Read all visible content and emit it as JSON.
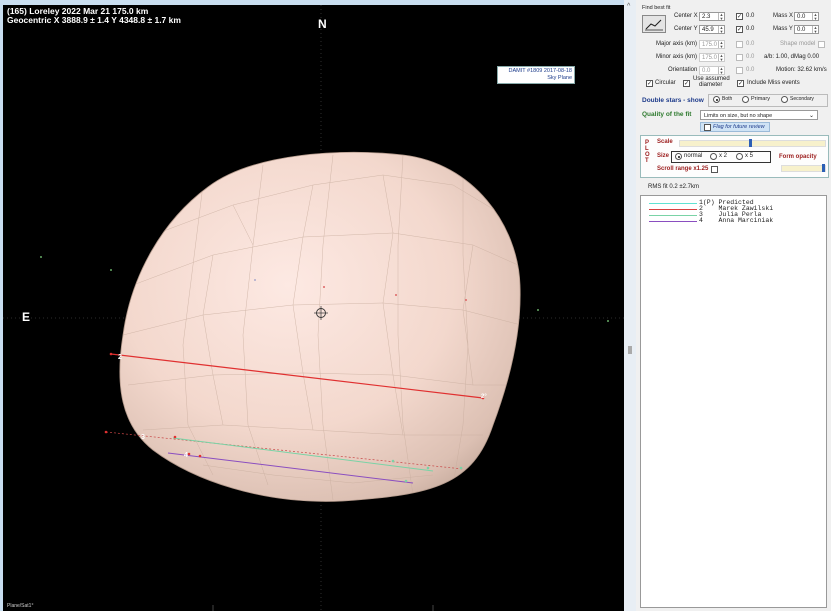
{
  "header": {
    "line1": "(165) Loreley  2022 Mar 21   175.0 km",
    "line2": "Geocentric  X  3888.9 ± 1.4  Y 4348.8 ± 1.7 km"
  },
  "compass": {
    "north": "N",
    "east": "E"
  },
  "damit_label": {
    "line1": "DAMIT #1809 2017-08-18",
    "line2": "Sky Plane"
  },
  "footer_left": "Plane/Sat1°",
  "chords": [
    {
      "index": "1",
      "label": ""
    },
    {
      "index": "2",
      "label": "2"
    },
    {
      "index": "3",
      "label": "3"
    },
    {
      "index": "4",
      "label": "4"
    }
  ],
  "chord_end_labels": {
    "c2": "2°"
  },
  "splitter": {
    "collapse_glyph": "^"
  },
  "panel": {
    "find_best_fit": "Find best fit",
    "center_x_label": "Center X",
    "center_x_value": "2.3",
    "center_y_label": "Center Y",
    "center_y_value": "45.9",
    "chk_x_value": "0.0",
    "chk_y_value": "0.0",
    "mass_x_label": "Mass X",
    "mass_x_value": "0.0",
    "mass_y_label": "Mass Y",
    "mass_y_value": "0.0",
    "major_axis_label": "Major axis (km)",
    "major_axis_value": "175.0",
    "major_chk_value": "0.0",
    "minor_axis_label": "Minor axis (km)",
    "minor_axis_value": "175.0",
    "minor_chk_value": "0.0",
    "orientation_label": "Orientation",
    "orientation_value": "0.0",
    "orientation_chk_value": "0.0",
    "shape_model_label": "Shape model",
    "ab_label": "a/b: 1.00, dMag 0.00",
    "motion_label": "Motion: 32.62 km/s",
    "circular_label": "Circular",
    "use_assumed_label_1": "Use assumed",
    "use_assumed_label_2": "diameter",
    "include_miss_label": "Include Miss events",
    "double_stars_label": "Double stars - show",
    "radio_both": "Both",
    "radio_primary": "Primary",
    "radio_secondary": "Secondary",
    "quality_label": "Quality of the fit",
    "quality_value": "Limits on size, but no shape",
    "flag_label": "Flag for future review",
    "plot_letters": [
      "P",
      "L",
      "O",
      "T"
    ],
    "scale_label": "Scale",
    "size_label": "Size",
    "size_normal": "normal",
    "size_x2": "x 2",
    "size_x5": "x 5",
    "form_opacity_label": "Form opacity",
    "scroll_range_label": "Scroll range x1.25",
    "rms_label": "RMS fit 0.2 ±2.7km",
    "legend": [
      {
        "num": "1(P)",
        "name": "Predicted",
        "color": "#5fe3d3"
      },
      {
        "num": "2",
        "name": "Marek Zawilski",
        "color": "#d84040"
      },
      {
        "num": "3",
        "name": "Julia Perla",
        "color": "#7ad3a6"
      },
      {
        "num": "4",
        "name": "Anna Marciniak",
        "color": "#8a4ec0"
      }
    ]
  }
}
